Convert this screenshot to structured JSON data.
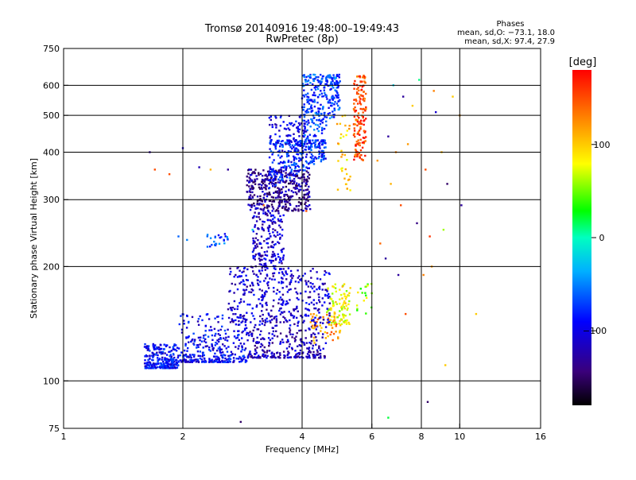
{
  "chart_data": {
    "type": "scatter",
    "title": "Tromsø 20140916 19:48:00–19:49:43",
    "subtitle": "RwPretec (8p)",
    "xlabel": "Frequency [MHz]",
    "ylabel": "Stationary phase Virtual Height [km]",
    "xscale": "log",
    "yscale": "log",
    "xlim": [
      1,
      16
    ],
    "ylim": [
      75,
      750
    ],
    "xticks": [
      1,
      2,
      4,
      6,
      8,
      10,
      16
    ],
    "yticks": [
      75,
      100,
      200,
      300,
      400,
      500,
      600,
      750
    ],
    "x_gridlines": [
      2,
      4,
      6,
      8,
      10
    ],
    "y_gridlines": [
      100,
      200,
      300,
      400,
      500,
      600
    ],
    "grid": true,
    "stats": {
      "title": "Phases",
      "line_o": "mean, sd,O: −73.1, 18.0",
      "line_x": "mean, sd,X:  97.4, 27.9"
    },
    "colorbar": {
      "label": "[deg]",
      "range": [
        -180,
        180
      ],
      "ticks": [
        100,
        0,
        -100
      ],
      "placement": "right"
    },
    "series": [
      {
        "clusters": [
          {
            "x": [
              1.6,
              1.95
            ],
            "y": [
              108,
              125
            ],
            "phase": -90,
            "n": 260,
            "shape": "lower"
          },
          {
            "x": [
              1.95,
              2.9
            ],
            "y": [
              112,
              150
            ],
            "phase": -95,
            "n": 320,
            "shape": "lower"
          },
          {
            "x": [
              2.9,
              4.6
            ],
            "y": [
              115,
              140
            ],
            "phase": -118,
            "n": 260,
            "shape": "lower"
          },
          {
            "x": [
              4.2,
              5.0
            ],
            "y": [
              125,
              150
            ],
            "phase": 120,
            "n": 60,
            "shape": "box"
          },
          {
            "x": [
              4.6,
              5.3
            ],
            "y": [
              140,
              180
            ],
            "phase": 80,
            "n": 90,
            "shape": "box"
          },
          {
            "x": [
              2.6,
              4.7
            ],
            "y": [
              140,
              200
            ],
            "phase": -110,
            "n": 380,
            "shape": "box"
          },
          {
            "x": [
              3.0,
              3.6
            ],
            "y": [
              200,
              280
            ],
            "phase": -110,
            "n": 180,
            "shape": "box"
          },
          {
            "x": [
              2.9,
              4.2
            ],
            "y": [
              280,
              360
            ],
            "phase": -130,
            "n": 420,
            "shape": "box"
          },
          {
            "x": [
              3.3,
              4.6
            ],
            "y": [
              320,
              430
            ],
            "phase": -80,
            "n": 300,
            "shape": "upper"
          },
          {
            "x": [
              4.0,
              5.0
            ],
            "y": [
              380,
              640
            ],
            "phase": -70,
            "n": 300,
            "shape": "upper"
          },
          {
            "x": [
              3.3,
              4.1
            ],
            "y": [
              400,
              500
            ],
            "phase": -100,
            "n": 80,
            "shape": "box"
          },
          {
            "x": [
              5.4,
              5.8
            ],
            "y": [
              380,
              640
            ],
            "phase": 150,
            "n": 150,
            "shape": "box"
          },
          {
            "x": [
              4.9,
              5.3
            ],
            "y": [
              300,
              500
            ],
            "phase": 100,
            "n": 35,
            "shape": "box"
          },
          {
            "x": [
              2.3,
              2.6
            ],
            "y": [
              225,
              245
            ],
            "phase": -70,
            "n": 25,
            "shape": "box"
          },
          {
            "x": [
              5.5,
              6.0
            ],
            "y": [
              150,
              180
            ],
            "phase": 60,
            "n": 18,
            "shape": "box"
          }
        ],
        "isolated_points": [
          [
            1.65,
            400,
            -130
          ],
          [
            1.7,
            360,
            150
          ],
          [
            1.85,
            350,
            150
          ],
          [
            2.0,
            410,
            -110
          ],
          [
            1.95,
            240,
            -60
          ],
          [
            2.05,
            235,
            -50
          ],
          [
            2.2,
            365,
            -120
          ],
          [
            2.35,
            360,
            110
          ],
          [
            2.6,
            360,
            -130
          ],
          [
            2.8,
            78,
            -150
          ],
          [
            3.0,
            250,
            -20
          ],
          [
            3.2,
            290,
            140
          ],
          [
            4.1,
            280,
            150
          ],
          [
            6.3,
            230,
            140
          ],
          [
            6.5,
            210,
            -130
          ],
          [
            6.6,
            80,
            20
          ],
          [
            6.7,
            330,
            110
          ],
          [
            6.8,
            600,
            -20
          ],
          [
            6.9,
            400,
            130
          ],
          [
            7.1,
            290,
            150
          ],
          [
            7.2,
            560,
            -130
          ],
          [
            7.4,
            420,
            120
          ],
          [
            7.6,
            530,
            100
          ],
          [
            7.8,
            260,
            -140
          ],
          [
            7.9,
            620,
            10
          ],
          [
            8.1,
            190,
            130
          ],
          [
            8.2,
            360,
            150
          ],
          [
            8.4,
            240,
            160
          ],
          [
            8.5,
            200,
            120
          ],
          [
            8.6,
            580,
            130
          ],
          [
            8.7,
            510,
            -110
          ],
          [
            9.0,
            400,
            110
          ],
          [
            9.1,
            250,
            60
          ],
          [
            9.2,
            110,
            100
          ],
          [
            9.3,
            330,
            -150
          ],
          [
            9.6,
            560,
            100
          ],
          [
            10.0,
            500,
            120
          ],
          [
            10.1,
            290,
            -130
          ],
          [
            11.0,
            150,
            100
          ],
          [
            8.3,
            88,
            -150
          ],
          [
            6.6,
            440,
            -130
          ],
          [
            6.2,
            380,
            120
          ],
          [
            7.0,
            190,
            -130
          ],
          [
            7.3,
            150,
            150
          ]
        ]
      }
    ]
  }
}
